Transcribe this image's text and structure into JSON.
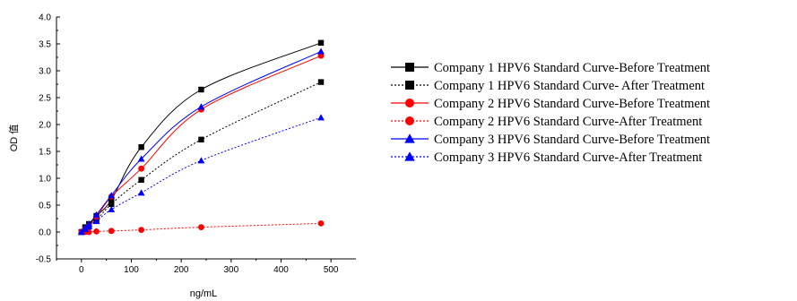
{
  "chart_data": {
    "type": "scatter",
    "xlabel": "ng/mL",
    "ylabel": "OD 值",
    "xlim": [
      -50,
      550
    ],
    "ylim": [
      -0.5,
      4.0
    ],
    "xticks": [
      0,
      100,
      200,
      300,
      400,
      500
    ],
    "yticks": [
      -0.5,
      0.0,
      0.5,
      1.0,
      1.5,
      2.0,
      2.5,
      3.0,
      3.5,
      4.0
    ],
    "ytick_labels": [
      "-0.5",
      "0.0",
      "0.5",
      "1.0",
      "1.5",
      "2.0",
      "2.5",
      "3.0",
      "3.5",
      "4.0"
    ],
    "grid": false,
    "legend_position": "right",
    "series": [
      {
        "name": "Company 1 HPV6 Standard Curve-Before Treatment",
        "color": "#000000",
        "marker": "square",
        "line": "solid",
        "x": [
          0,
          7.5,
          15,
          30,
          60,
          120,
          240,
          480
        ],
        "y": [
          0.0,
          0.09,
          0.15,
          0.3,
          0.6,
          1.58,
          2.65,
          3.52
        ]
      },
      {
        "name": "Company 1 HPV6 Standard Curve- After Treatment",
        "color": "#000000",
        "marker": "square",
        "line": "dotted",
        "x": [
          0,
          7.5,
          15,
          30,
          60,
          120,
          240,
          480
        ],
        "y": [
          0.0,
          0.07,
          0.12,
          0.22,
          0.52,
          0.97,
          1.72,
          2.79
        ]
      },
      {
        "name": "Company 2 HPV6 Standard Curve-Before Treatment",
        "color": "#ff0000",
        "marker": "circle",
        "line": "solid",
        "x": [
          0,
          7.5,
          15,
          30,
          60,
          120,
          240,
          480
        ],
        "y": [
          0.0,
          0.06,
          0.12,
          0.28,
          0.66,
          1.18,
          2.28,
          3.28
        ]
      },
      {
        "name": "Company 2 HPV6 Standard Curve-After Treatment",
        "color": "#ff0000",
        "marker": "circle",
        "line": "dotted",
        "x": [
          0,
          7.5,
          15,
          30,
          60,
          120,
          240,
          480
        ],
        "y": [
          0.0,
          0.0,
          0.0,
          0.01,
          0.02,
          0.04,
          0.09,
          0.16
        ]
      },
      {
        "name": "Company 3 HPV6 Standard Curve-Before Treatment",
        "color": "#0000ff",
        "marker": "triangle",
        "line": "solid",
        "x": [
          0,
          7.5,
          15,
          30,
          60,
          120,
          240,
          480
        ],
        "y": [
          0.0,
          0.08,
          0.15,
          0.32,
          0.68,
          1.36,
          2.33,
          3.36
        ]
      },
      {
        "name": "Company 3 HPV6 Standard Curve-After Treatment",
        "color": "#0000ff",
        "marker": "triangle",
        "line": "dotted",
        "x": [
          0,
          7.5,
          15,
          30,
          60,
          120,
          240,
          480
        ],
        "y": [
          0.0,
          0.05,
          0.1,
          0.2,
          0.42,
          0.73,
          1.33,
          2.13
        ]
      }
    ]
  }
}
